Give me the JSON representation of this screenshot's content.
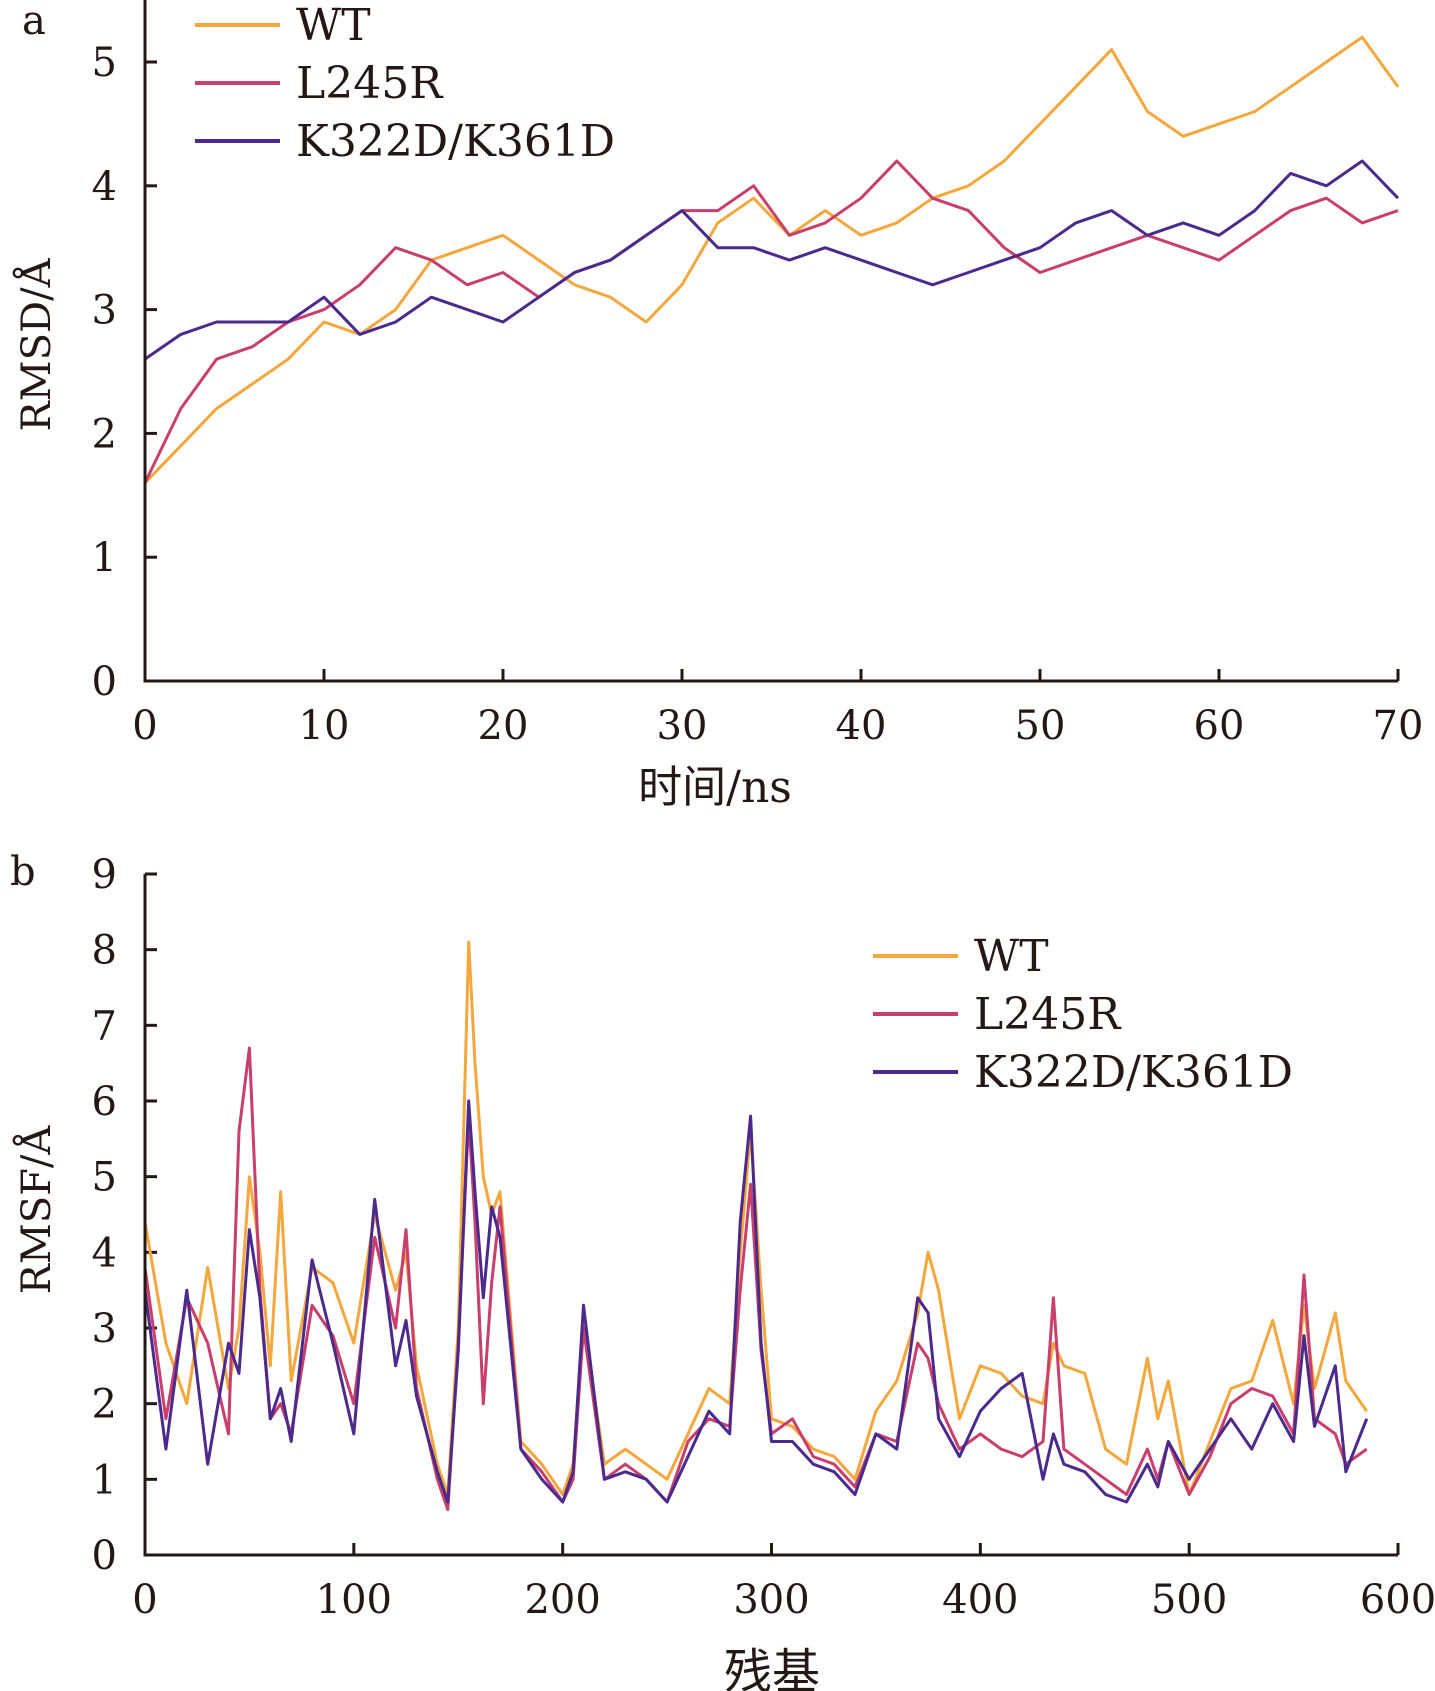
{
  "chart_data": [
    {
      "panel_label": "a",
      "type": "line",
      "xlabel": "时间/ns",
      "ylabel": "RMSD/Å",
      "xlim": [
        0,
        70
      ],
      "ylim": [
        0,
        5.5
      ],
      "xticks": [
        "0",
        "10",
        "20",
        "30",
        "40",
        "50",
        "60",
        "70"
      ],
      "yticks": [
        "0",
        "1",
        "2",
        "3",
        "4",
        "5"
      ],
      "legend_position": "top-left",
      "x": [
        0,
        2,
        4,
        6,
        8,
        10,
        12,
        14,
        16,
        18,
        20,
        22,
        24,
        26,
        28,
        30,
        32,
        34,
        36,
        38,
        40,
        42,
        44,
        46,
        48,
        50,
        52,
        54,
        56,
        58,
        60,
        62,
        64,
        66,
        68,
        70
      ],
      "series": [
        {
          "name": "WT",
          "color": "#f3a73d",
          "values": [
            1.6,
            1.9,
            2.2,
            2.4,
            2.6,
            2.9,
            2.8,
            3.0,
            3.4,
            3.5,
            3.6,
            3.4,
            3.2,
            3.1,
            2.9,
            3.2,
            3.7,
            3.9,
            3.6,
            3.8,
            3.6,
            3.7,
            3.9,
            4.0,
            4.2,
            4.5,
            4.8,
            5.1,
            4.6,
            4.4,
            4.5,
            4.6,
            4.8,
            5.0,
            5.2,
            4.8
          ]
        },
        {
          "name": "L245R",
          "color": "#c83f6c",
          "values": [
            1.6,
            2.2,
            2.6,
            2.7,
            2.9,
            3.0,
            3.2,
            3.5,
            3.4,
            3.2,
            3.3,
            3.1,
            3.3,
            3.4,
            3.6,
            3.8,
            3.8,
            4.0,
            3.6,
            3.7,
            3.9,
            4.2,
            3.9,
            3.8,
            3.5,
            3.3,
            3.4,
            3.5,
            3.6,
            3.5,
            3.4,
            3.6,
            3.8,
            3.9,
            3.7,
            3.8
          ]
        },
        {
          "name": "K322D/K361D",
          "color": "#4b2a8c",
          "values": [
            2.6,
            2.8,
            2.9,
            2.9,
            2.9,
            3.1,
            2.8,
            2.9,
            3.1,
            3.0,
            2.9,
            3.1,
            3.3,
            3.4,
            3.6,
            3.8,
            3.5,
            3.5,
            3.4,
            3.5,
            3.4,
            3.3,
            3.2,
            3.3,
            3.4,
            3.5,
            3.7,
            3.8,
            3.6,
            3.7,
            3.6,
            3.8,
            4.1,
            4.0,
            4.2,
            3.9
          ]
        }
      ]
    },
    {
      "panel_label": "b",
      "type": "line",
      "xlabel": "残基",
      "ylabel": "RMSF/Å",
      "xlim": [
        0,
        600
      ],
      "ylim": [
        0,
        9
      ],
      "xticks": [
        "0",
        "100",
        "200",
        "300",
        "400",
        "500",
        "600"
      ],
      "yticks": [
        "0",
        "1",
        "2",
        "3",
        "4",
        "5",
        "6",
        "7",
        "8",
        "9"
      ],
      "legend_position": "top-right",
      "x": [
        0,
        10,
        20,
        30,
        40,
        45,
        50,
        55,
        60,
        65,
        70,
        80,
        90,
        100,
        110,
        120,
        125,
        130,
        140,
        145,
        150,
        155,
        158,
        162,
        166,
        170,
        180,
        190,
        200,
        205,
        210,
        220,
        230,
        240,
        250,
        260,
        270,
        280,
        285,
        290,
        295,
        300,
        310,
        320,
        330,
        340,
        350,
        360,
        370,
        375,
        380,
        390,
        400,
        410,
        420,
        430,
        435,
        440,
        450,
        460,
        470,
        480,
        485,
        490,
        500,
        510,
        520,
        530,
        540,
        550,
        555,
        560,
        570,
        575,
        585
      ],
      "series": [
        {
          "name": "WT",
          "color": "#f3a73d",
          "values": [
            4.4,
            2.8,
            2.0,
            3.8,
            2.2,
            3.0,
            5.0,
            4.0,
            2.5,
            4.8,
            2.3,
            3.8,
            3.6,
            2.8,
            4.5,
            3.5,
            4.0,
            2.5,
            1.2,
            0.8,
            3.0,
            8.1,
            6.5,
            5.0,
            4.5,
            4.8,
            1.5,
            1.2,
            0.8,
            1.2,
            3.1,
            1.2,
            1.4,
            1.2,
            1.0,
            1.6,
            2.2,
            2.0,
            4.0,
            5.6,
            3.5,
            1.8,
            1.7,
            1.4,
            1.3,
            1.0,
            1.9,
            2.3,
            3.2,
            4.0,
            3.5,
            1.8,
            2.5,
            2.4,
            2.1,
            2.0,
            2.8,
            2.5,
            2.4,
            1.4,
            1.2,
            2.6,
            1.8,
            2.3,
            0.8,
            1.5,
            2.2,
            2.3,
            3.1,
            2.0,
            3.3,
            2.2,
            3.2,
            2.3,
            1.9
          ]
        },
        {
          "name": "L245R",
          "color": "#c83f6c",
          "values": [
            3.8,
            1.8,
            3.4,
            2.8,
            1.6,
            5.6,
            6.7,
            3.5,
            1.8,
            2.0,
            1.6,
            3.3,
            2.9,
            2.0,
            4.2,
            3.0,
            4.3,
            2.2,
            1.0,
            0.6,
            2.8,
            5.8,
            4.4,
            2.0,
            3.6,
            4.6,
            1.4,
            1.1,
            0.7,
            1.0,
            3.0,
            1.0,
            1.2,
            1.0,
            0.7,
            1.5,
            1.8,
            1.7,
            3.5,
            4.9,
            2.7,
            1.6,
            1.8,
            1.3,
            1.2,
            0.9,
            1.6,
            1.5,
            2.8,
            2.6,
            2.0,
            1.4,
            1.6,
            1.4,
            1.3,
            1.5,
            3.4,
            1.4,
            1.2,
            1.0,
            0.8,
            1.4,
            1.0,
            1.5,
            0.8,
            1.3,
            2.0,
            2.2,
            2.1,
            1.6,
            3.7,
            1.8,
            1.6,
            1.2,
            1.4
          ]
        },
        {
          "name": "K322D/K361D",
          "color": "#4b2a8c",
          "values": [
            3.5,
            1.4,
            3.5,
            1.2,
            2.8,
            2.4,
            4.3,
            3.4,
            1.8,
            2.2,
            1.5,
            3.9,
            2.8,
            1.6,
            4.7,
            2.5,
            3.1,
            2.1,
            1.1,
            0.7,
            2.7,
            6.0,
            4.8,
            3.4,
            4.6,
            4.2,
            1.4,
            1.0,
            0.7,
            1.1,
            3.3,
            1.0,
            1.1,
            1.0,
            0.7,
            1.3,
            1.9,
            1.6,
            4.4,
            5.8,
            2.8,
            1.5,
            1.5,
            1.2,
            1.1,
            0.8,
            1.6,
            1.4,
            3.4,
            3.2,
            1.8,
            1.3,
            1.9,
            2.2,
            2.4,
            1.0,
            1.6,
            1.2,
            1.1,
            0.8,
            0.7,
            1.2,
            0.9,
            1.5,
            1.0,
            1.4,
            1.8,
            1.4,
            2.0,
            1.5,
            2.9,
            1.7,
            2.5,
            1.1,
            1.8
          ]
        }
      ]
    }
  ]
}
